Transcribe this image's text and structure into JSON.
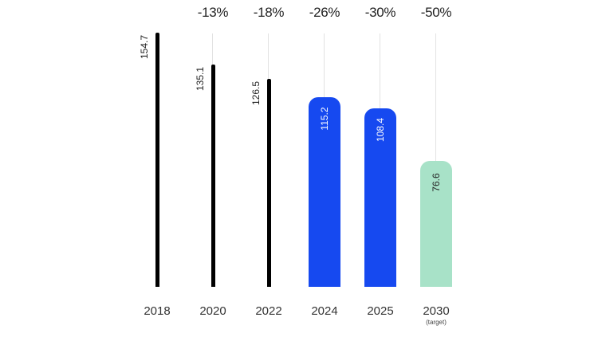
{
  "chart_data": {
    "type": "bar",
    "title": "",
    "xlabel": "",
    "ylabel": "",
    "categories": [
      "2018",
      "2020",
      "2022",
      "2024",
      "2025",
      "2030"
    ],
    "category_sublabels": [
      "",
      "",
      "",
      "",
      "",
      "(target)"
    ],
    "values": [
      154.7,
      135.1,
      126.5,
      115.2,
      108.4,
      76.6
    ],
    "value_labels": [
      "154.7",
      "135.1",
      "126.5",
      "115.2",
      "108.4",
      "76.6"
    ],
    "change_labels": [
      "",
      "-13%",
      "-18%",
      "-26%",
      "-30%",
      "-50%"
    ],
    "bar_styles": [
      "thin",
      "thin",
      "thin",
      "wide",
      "wide",
      "wide"
    ],
    "bar_colors": [
      "#000000",
      "#000000",
      "#000000",
      "#1649f0",
      "#1649f0",
      "#a8e2c8"
    ],
    "value_label_colors": [
      "#222222",
      "#222222",
      "#222222",
      "#ffffff",
      "#ffffff",
      "#222222"
    ],
    "ylim": [
      0,
      160
    ],
    "grid": false,
    "legend": "none"
  }
}
